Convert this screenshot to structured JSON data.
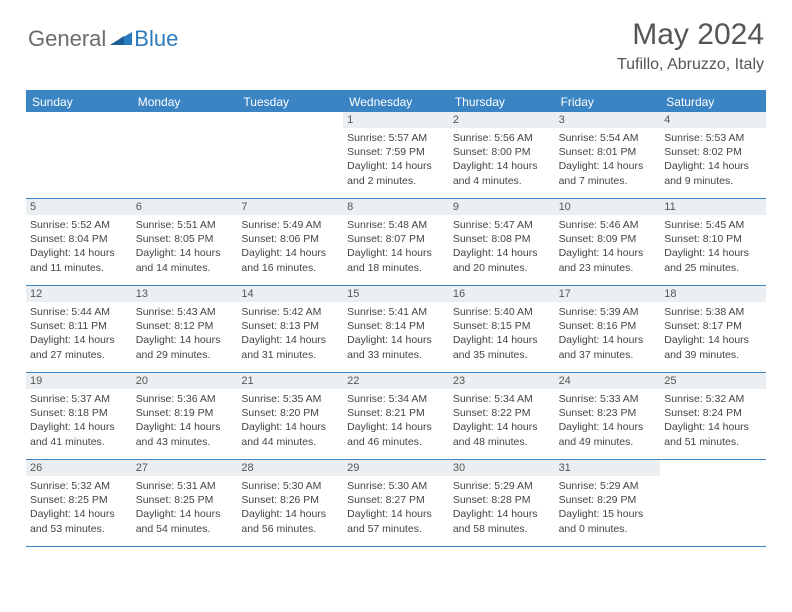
{
  "logo": {
    "general": "General",
    "blue": "Blue"
  },
  "title": "May 2024",
  "location": "Tufillo, Abruzzo, Italy",
  "colors": {
    "header_bar": "#3b84c4",
    "daynum_bg": "#eceff1",
    "text": "#444444",
    "title_text": "#555555",
    "logo_gray": "#6b6b6b",
    "logo_blue": "#2b7bbf",
    "background": "#ffffff"
  },
  "typography": {
    "title_fontsize": 30,
    "location_fontsize": 16,
    "dow_fontsize": 12,
    "daynum_fontsize": 11,
    "info_fontsize": 10.5
  },
  "days_of_week": [
    "Sunday",
    "Monday",
    "Tuesday",
    "Wednesday",
    "Thursday",
    "Friday",
    "Saturday"
  ],
  "weeks": [
    [
      {
        "n": "",
        "sr": "",
        "ss": "",
        "dl": ""
      },
      {
        "n": "",
        "sr": "",
        "ss": "",
        "dl": ""
      },
      {
        "n": "",
        "sr": "",
        "ss": "",
        "dl": ""
      },
      {
        "n": "1",
        "sr": "Sunrise: 5:57 AM",
        "ss": "Sunset: 7:59 PM",
        "dl": "Daylight: 14 hours and 2 minutes."
      },
      {
        "n": "2",
        "sr": "Sunrise: 5:56 AM",
        "ss": "Sunset: 8:00 PM",
        "dl": "Daylight: 14 hours and 4 minutes."
      },
      {
        "n": "3",
        "sr": "Sunrise: 5:54 AM",
        "ss": "Sunset: 8:01 PM",
        "dl": "Daylight: 14 hours and 7 minutes."
      },
      {
        "n": "4",
        "sr": "Sunrise: 5:53 AM",
        "ss": "Sunset: 8:02 PM",
        "dl": "Daylight: 14 hours and 9 minutes."
      }
    ],
    [
      {
        "n": "5",
        "sr": "Sunrise: 5:52 AM",
        "ss": "Sunset: 8:04 PM",
        "dl": "Daylight: 14 hours and 11 minutes."
      },
      {
        "n": "6",
        "sr": "Sunrise: 5:51 AM",
        "ss": "Sunset: 8:05 PM",
        "dl": "Daylight: 14 hours and 14 minutes."
      },
      {
        "n": "7",
        "sr": "Sunrise: 5:49 AM",
        "ss": "Sunset: 8:06 PM",
        "dl": "Daylight: 14 hours and 16 minutes."
      },
      {
        "n": "8",
        "sr": "Sunrise: 5:48 AM",
        "ss": "Sunset: 8:07 PM",
        "dl": "Daylight: 14 hours and 18 minutes."
      },
      {
        "n": "9",
        "sr": "Sunrise: 5:47 AM",
        "ss": "Sunset: 8:08 PM",
        "dl": "Daylight: 14 hours and 20 minutes."
      },
      {
        "n": "10",
        "sr": "Sunrise: 5:46 AM",
        "ss": "Sunset: 8:09 PM",
        "dl": "Daylight: 14 hours and 23 minutes."
      },
      {
        "n": "11",
        "sr": "Sunrise: 5:45 AM",
        "ss": "Sunset: 8:10 PM",
        "dl": "Daylight: 14 hours and 25 minutes."
      }
    ],
    [
      {
        "n": "12",
        "sr": "Sunrise: 5:44 AM",
        "ss": "Sunset: 8:11 PM",
        "dl": "Daylight: 14 hours and 27 minutes."
      },
      {
        "n": "13",
        "sr": "Sunrise: 5:43 AM",
        "ss": "Sunset: 8:12 PM",
        "dl": "Daylight: 14 hours and 29 minutes."
      },
      {
        "n": "14",
        "sr": "Sunrise: 5:42 AM",
        "ss": "Sunset: 8:13 PM",
        "dl": "Daylight: 14 hours and 31 minutes."
      },
      {
        "n": "15",
        "sr": "Sunrise: 5:41 AM",
        "ss": "Sunset: 8:14 PM",
        "dl": "Daylight: 14 hours and 33 minutes."
      },
      {
        "n": "16",
        "sr": "Sunrise: 5:40 AM",
        "ss": "Sunset: 8:15 PM",
        "dl": "Daylight: 14 hours and 35 minutes."
      },
      {
        "n": "17",
        "sr": "Sunrise: 5:39 AM",
        "ss": "Sunset: 8:16 PM",
        "dl": "Daylight: 14 hours and 37 minutes."
      },
      {
        "n": "18",
        "sr": "Sunrise: 5:38 AM",
        "ss": "Sunset: 8:17 PM",
        "dl": "Daylight: 14 hours and 39 minutes."
      }
    ],
    [
      {
        "n": "19",
        "sr": "Sunrise: 5:37 AM",
        "ss": "Sunset: 8:18 PM",
        "dl": "Daylight: 14 hours and 41 minutes."
      },
      {
        "n": "20",
        "sr": "Sunrise: 5:36 AM",
        "ss": "Sunset: 8:19 PM",
        "dl": "Daylight: 14 hours and 43 minutes."
      },
      {
        "n": "21",
        "sr": "Sunrise: 5:35 AM",
        "ss": "Sunset: 8:20 PM",
        "dl": "Daylight: 14 hours and 44 minutes."
      },
      {
        "n": "22",
        "sr": "Sunrise: 5:34 AM",
        "ss": "Sunset: 8:21 PM",
        "dl": "Daylight: 14 hours and 46 minutes."
      },
      {
        "n": "23",
        "sr": "Sunrise: 5:34 AM",
        "ss": "Sunset: 8:22 PM",
        "dl": "Daylight: 14 hours and 48 minutes."
      },
      {
        "n": "24",
        "sr": "Sunrise: 5:33 AM",
        "ss": "Sunset: 8:23 PM",
        "dl": "Daylight: 14 hours and 49 minutes."
      },
      {
        "n": "25",
        "sr": "Sunrise: 5:32 AM",
        "ss": "Sunset: 8:24 PM",
        "dl": "Daylight: 14 hours and 51 minutes."
      }
    ],
    [
      {
        "n": "26",
        "sr": "Sunrise: 5:32 AM",
        "ss": "Sunset: 8:25 PM",
        "dl": "Daylight: 14 hours and 53 minutes."
      },
      {
        "n": "27",
        "sr": "Sunrise: 5:31 AM",
        "ss": "Sunset: 8:25 PM",
        "dl": "Daylight: 14 hours and 54 minutes."
      },
      {
        "n": "28",
        "sr": "Sunrise: 5:30 AM",
        "ss": "Sunset: 8:26 PM",
        "dl": "Daylight: 14 hours and 56 minutes."
      },
      {
        "n": "29",
        "sr": "Sunrise: 5:30 AM",
        "ss": "Sunset: 8:27 PM",
        "dl": "Daylight: 14 hours and 57 minutes."
      },
      {
        "n": "30",
        "sr": "Sunrise: 5:29 AM",
        "ss": "Sunset: 8:28 PM",
        "dl": "Daylight: 14 hours and 58 minutes."
      },
      {
        "n": "31",
        "sr": "Sunrise: 5:29 AM",
        "ss": "Sunset: 8:29 PM",
        "dl": "Daylight: 15 hours and 0 minutes."
      },
      {
        "n": "",
        "sr": "",
        "ss": "",
        "dl": ""
      }
    ]
  ]
}
